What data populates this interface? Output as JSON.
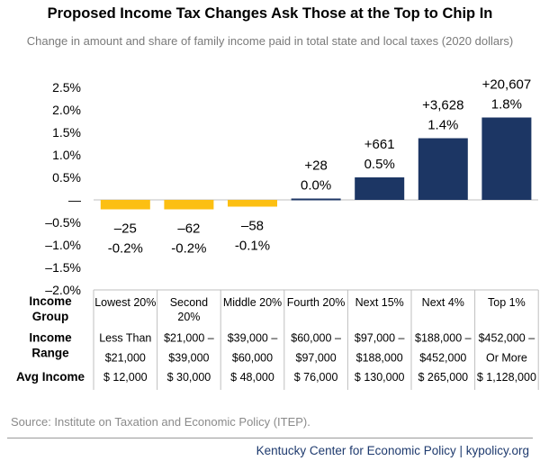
{
  "title": "Proposed Income Tax Changes Ask Those at the Top to Chip In",
  "subtitle": "Change in amount and share of family income paid in total state and local taxes (2020 dollars)",
  "source": "Source: Institute on Taxation and Economic Policy (ITEP).",
  "credit": "Kentucky Center for Economic Policy | kypolicy.org",
  "colors": {
    "negative": "#fcbf12",
    "positive": "#1c3664",
    "accent_text": "#1e3a6e"
  },
  "chart_data": {
    "type": "bar",
    "title": "Proposed Income Tax Changes Ask Those at the Top to Chip In",
    "categories": [
      "Lowest 20%",
      "Second 20%",
      "Middle 20%",
      "Fourth 20%",
      "Next 15%",
      "Next 4%",
      "Top 1%"
    ],
    "values": [
      -0.2,
      -0.2,
      -0.1,
      0.0,
      0.5,
      1.4,
      1.8
    ],
    "bar_values": [
      -0.21,
      -0.21,
      -0.15,
      0.03,
      0.5,
      1.37,
      1.83
    ],
    "amount_labels": [
      "–25",
      "–62",
      "–58",
      "+28",
      "+661",
      "+3,628",
      "+20,607"
    ],
    "share_labels": [
      "-0.2%",
      "-0.2%",
      "-0.1%",
      "0.0%",
      "0.5%",
      "1.4%",
      "1.8%"
    ],
    "ylim": [
      -2.0,
      2.5
    ],
    "yticks": [
      2.5,
      2.0,
      1.5,
      1.0,
      0.5,
      0,
      -0.5,
      -1.0,
      -1.5,
      -2.0
    ],
    "ytick_labels": [
      "2.5%",
      "2.0%",
      "1.5%",
      "1.0%",
      "0.5%",
      "—",
      "–0.5%",
      "–1.0%",
      "–1.5%",
      "–2.0%"
    ],
    "grid": false
  },
  "table": {
    "rows": [
      {
        "header": [
          "Income",
          "Group"
        ],
        "cells": [
          [
            "Lowest 20%"
          ],
          [
            "Second",
            "20%"
          ],
          [
            "Middle 20%"
          ],
          [
            "Fourth 20%"
          ],
          [
            "Next 15%"
          ],
          [
            "Next 4%"
          ],
          [
            "Top 1%"
          ]
        ]
      },
      {
        "header": [
          "Income",
          "Range"
        ],
        "cells": [
          [
            "Less Than",
            "$21,000"
          ],
          [
            "$21,000 –",
            "$39,000"
          ],
          [
            "$39,000 –",
            "$60,000"
          ],
          [
            "$60,000 –",
            "$97,000"
          ],
          [
            "$97,000 –",
            "$188,000"
          ],
          [
            "$188,000 –",
            "$452,000"
          ],
          [
            "$452,000 –",
            "Or More"
          ]
        ]
      },
      {
        "header": [
          "Avg Income"
        ],
        "cells": [
          [
            "$ 12,000"
          ],
          [
            "$ 30,000"
          ],
          [
            "$ 48,000"
          ],
          [
            "$ 76,000"
          ],
          [
            "$ 130,000"
          ],
          [
            "$ 265,000"
          ],
          [
            "$ 1,128,000"
          ]
        ]
      }
    ]
  }
}
